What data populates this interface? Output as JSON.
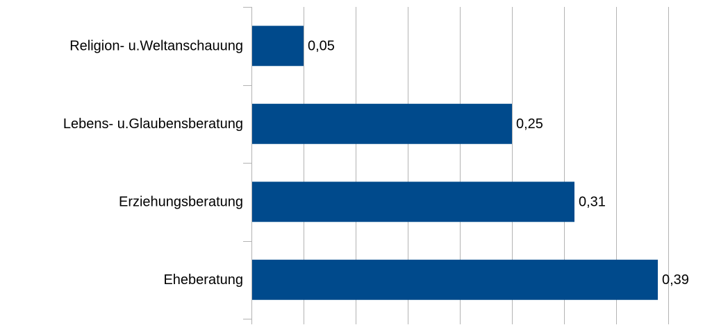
{
  "chart_data": {
    "type": "bar",
    "orientation": "horizontal",
    "categories": [
      "Religion- u.Weltanschauung",
      "Lebens- u.Glaubensberatung",
      "Erziehungsberatung",
      "Eheberatung"
    ],
    "values": [
      0.05,
      0.25,
      0.31,
      0.39
    ],
    "value_labels": [
      "0,05",
      "0,25",
      "0,31",
      "0,39"
    ],
    "xlim": [
      0,
      0.4
    ],
    "grid": true,
    "legend": false,
    "title": "",
    "xlabel": "",
    "ylabel": "",
    "colors": {
      "bar": "#004a8c",
      "grid": "#b3b3b3",
      "axis": "#b3b3b3"
    }
  }
}
